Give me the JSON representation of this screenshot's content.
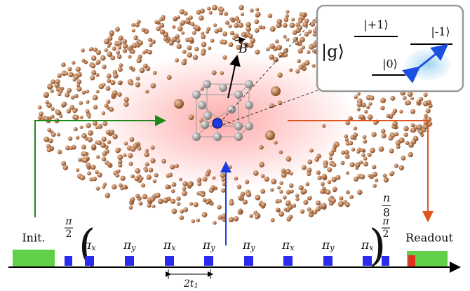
{
  "field": {
    "symbol": "B"
  },
  "inset": {
    "ground": "|g⟩",
    "levels": {
      "plus": "|+1⟩",
      "zero": "|0⟩",
      "minus": "|-1⟩"
    }
  },
  "sequence": {
    "init": "Init.",
    "readout": "Readout",
    "half_pulse": {
      "numerator": "π",
      "denominator": "2"
    },
    "pulses": [
      {
        "symbol": "π",
        "sub": "x"
      },
      {
        "symbol": "π",
        "sub": "y"
      },
      {
        "symbol": "π",
        "sub": "x"
      },
      {
        "symbol": "π",
        "sub": "y"
      },
      {
        "symbol": "π",
        "sub": "y"
      },
      {
        "symbol": "π",
        "sub": "x"
      },
      {
        "symbol": "π",
        "sub": "y"
      },
      {
        "symbol": "π",
        "sub": "x"
      }
    ],
    "repeat": {
      "numerator": "n",
      "denominator": "8"
    },
    "spacing": {
      "base": "2t",
      "sub": "1"
    }
  }
}
